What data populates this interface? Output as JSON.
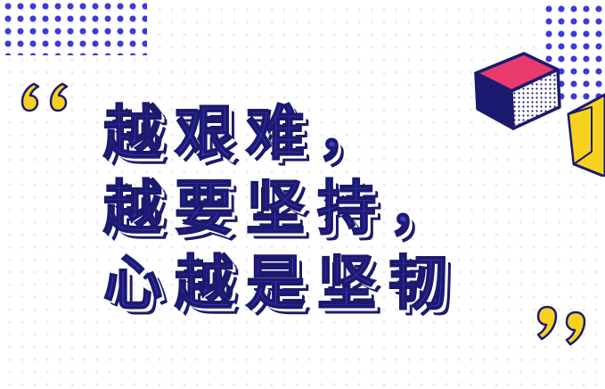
{
  "headline": {
    "line1": "越艰难，",
    "line2": "越要坚持，",
    "line3": "心越是坚韧"
  },
  "colors": {
    "text_blue": "#3b3ad8",
    "outline_navy": "#1c1a6e",
    "quote_yellow": "#f6d21f",
    "dot_blue": "#3d3ad6",
    "cube_pink": "#e93a6e"
  },
  "decorations": {
    "open_quote_icon": "open-quote-icon",
    "close_quote_icon": "close-quote-icon",
    "cube_icon": "cube-icon"
  }
}
